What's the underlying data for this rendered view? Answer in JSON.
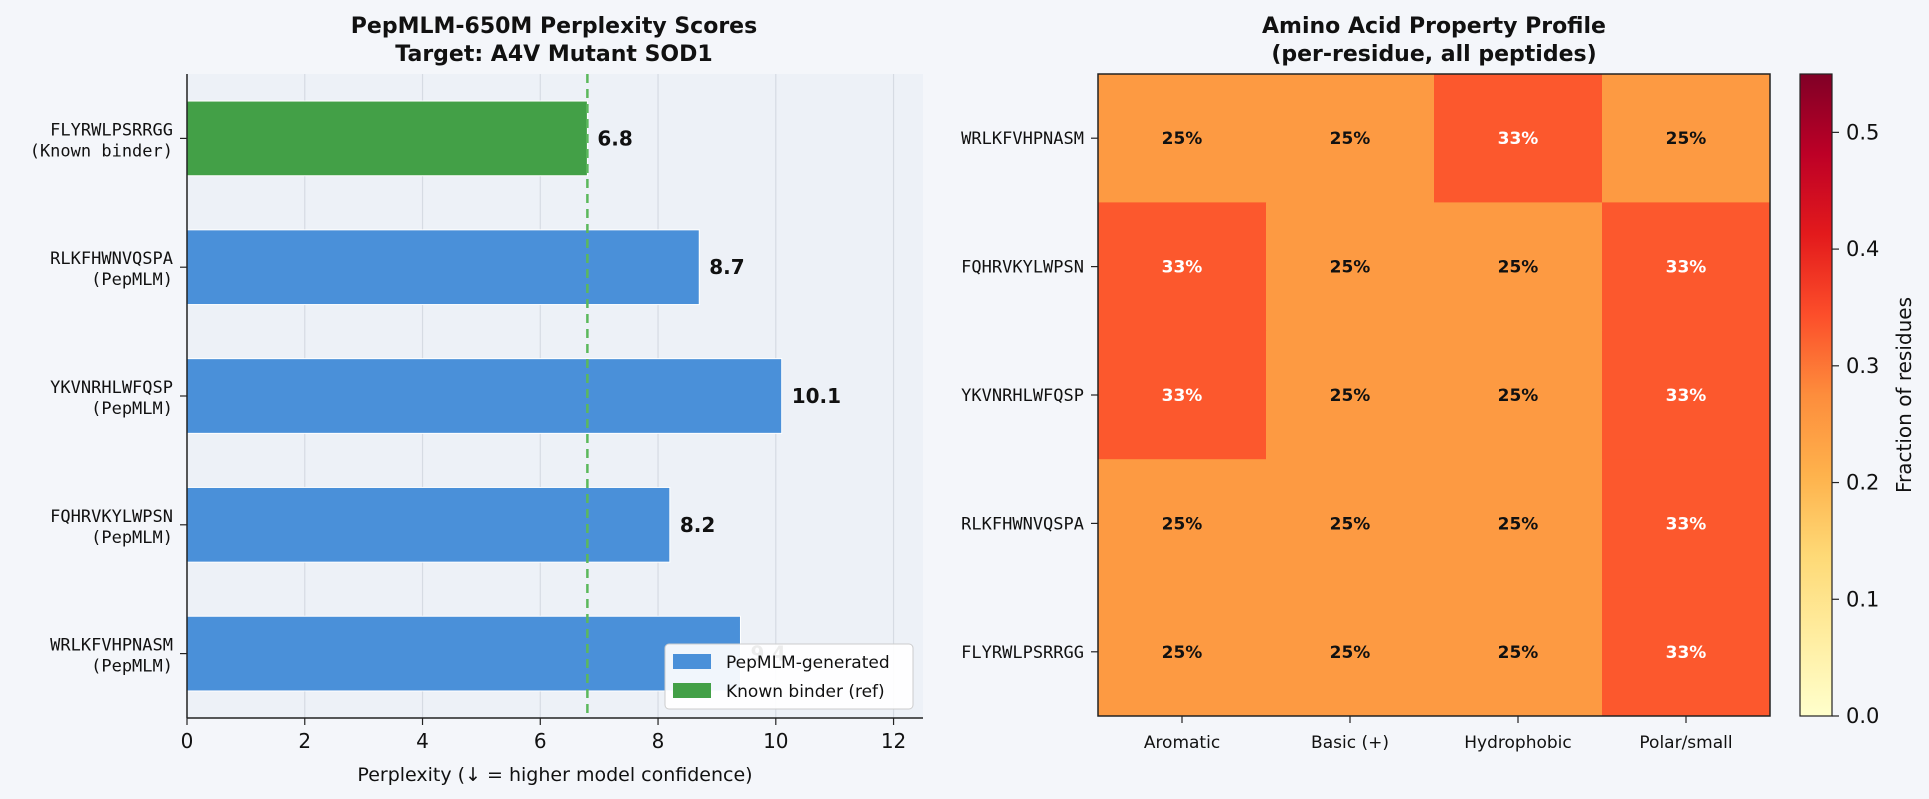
{
  "chart_data": [
    {
      "type": "bar",
      "orientation": "horizontal",
      "title": "PepMLM-650M Perplexity Scores",
      "subtitle": "Target: A4V Mutant SOD1",
      "xlabel": "Perplexity  (↓ = higher model confidence)",
      "xlim": [
        0,
        12.5
      ],
      "xticks": [
        "0",
        "2",
        "4",
        "6",
        "8",
        "10",
        "12"
      ],
      "grid": "vertical",
      "legend_placement": "lower-right",
      "reference_line": {
        "value": 6.8,
        "style": "dashed",
        "color": "#5cb85c"
      },
      "categories": [
        {
          "name": "FLYRWLPSRRGG",
          "tag": "(Known binder)"
        },
        {
          "name": "RLKFHWNVQSPA",
          "tag": "(PepMLM)"
        },
        {
          "name": "YKVNRHLWFQSP",
          "tag": "(PepMLM)"
        },
        {
          "name": "FQHRVKYLWPSN",
          "tag": "(PepMLM)"
        },
        {
          "name": "WRLKFVHPNASM",
          "tag": "(PepMLM)"
        }
      ],
      "values": [
        6.8,
        8.7,
        10.1,
        8.2,
        9.4
      ],
      "value_labels": [
        "6.8",
        "8.7",
        "10.1",
        "8.2",
        "9.4"
      ],
      "bar_groups": [
        "ref",
        "gen",
        "gen",
        "gen",
        "gen"
      ],
      "legend": [
        {
          "label": "PepMLM-generated",
          "color": "#4a90d9"
        },
        {
          "label": "Known binder (ref)",
          "color": "#43a047"
        }
      ]
    },
    {
      "type": "heatmap",
      "title": "Amino Acid Property Profile",
      "subtitle": "(per-residue, all peptides)",
      "rows": [
        "WRLKFVHPNASM",
        "FQHRVKYLWPSN",
        "YKVNRHLWFQSP",
        "RLKFHWNVQSPA",
        "FLYRWLPSRRGG"
      ],
      "columns": [
        "Aromatic",
        "Basic (+)",
        "Hydrophobic",
        "Polar/small"
      ],
      "values": [
        [
          0.25,
          0.25,
          0.333,
          0.25
        ],
        [
          0.333,
          0.25,
          0.25,
          0.333
        ],
        [
          0.333,
          0.25,
          0.25,
          0.333
        ],
        [
          0.25,
          0.25,
          0.25,
          0.333
        ],
        [
          0.25,
          0.25,
          0.25,
          0.333
        ]
      ],
      "cell_labels": [
        [
          "25%",
          "25%",
          "33%",
          "25%"
        ],
        [
          "33%",
          "25%",
          "25%",
          "33%"
        ],
        [
          "33%",
          "25%",
          "25%",
          "33%"
        ],
        [
          "25%",
          "25%",
          "25%",
          "33%"
        ],
        [
          "25%",
          "25%",
          "25%",
          "33%"
        ]
      ],
      "colorbar": {
        "label": "Fraction of residues",
        "range": [
          0,
          0.55
        ],
        "ticks": [
          "0.0",
          "0.1",
          "0.2",
          "0.3",
          "0.4",
          "0.5"
        ],
        "colormap": "YlOrRd"
      }
    }
  ]
}
